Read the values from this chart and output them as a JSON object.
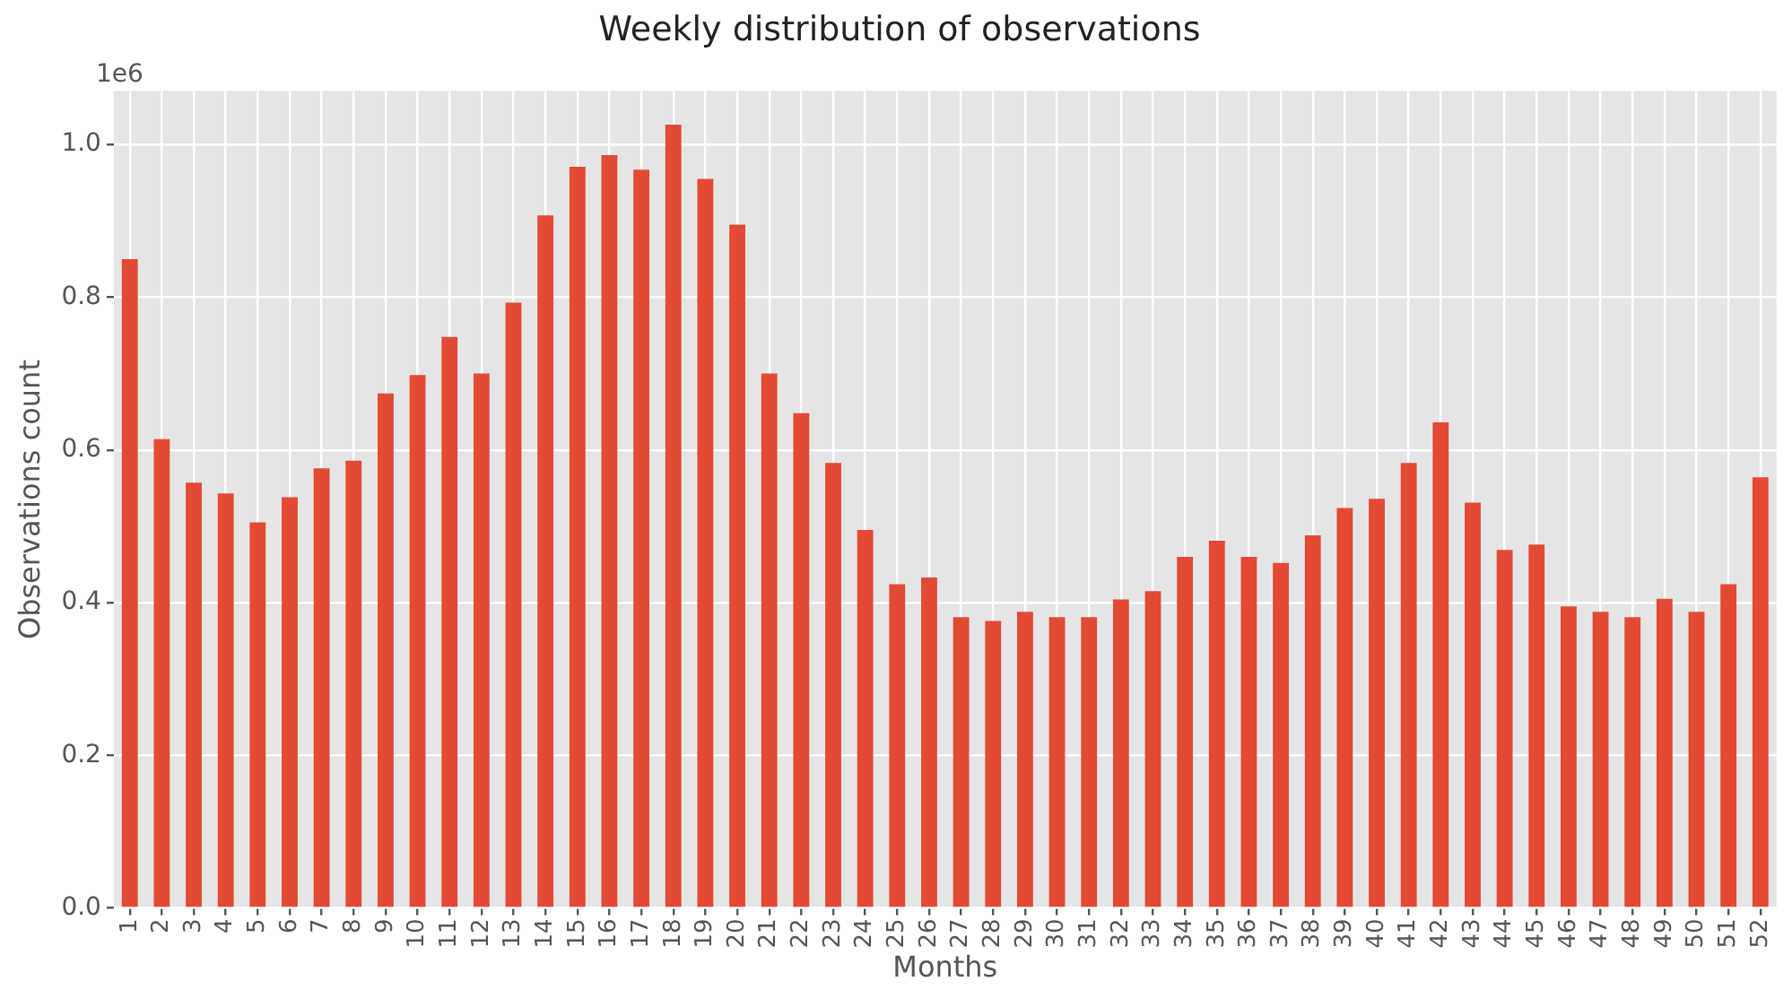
{
  "chart_data": {
    "type": "bar",
    "title": "Weekly distribution of observations",
    "xlabel": "Months",
    "ylabel": "Observations count",
    "categories": [
      "1",
      "2",
      "3",
      "4",
      "5",
      "6",
      "7",
      "8",
      "9",
      "10",
      "11",
      "12",
      "13",
      "14",
      "15",
      "16",
      "17",
      "18",
      "19",
      "20",
      "21",
      "22",
      "23",
      "24",
      "25",
      "26",
      "27",
      "28",
      "29",
      "30",
      "31",
      "32",
      "33",
      "34",
      "35",
      "36",
      "37",
      "38",
      "39",
      "40",
      "41",
      "42",
      "43",
      "44",
      "45",
      "46",
      "47",
      "48",
      "49",
      "50",
      "51",
      "52"
    ],
    "values": [
      0.85,
      0.614,
      0.557,
      0.543,
      0.505,
      0.538,
      0.576,
      0.586,
      0.674,
      0.698,
      0.748,
      0.7,
      0.793,
      0.907,
      0.971,
      0.986,
      0.967,
      1.026,
      0.955,
      0.895,
      0.7,
      0.648,
      0.583,
      0.495,
      0.424,
      0.433,
      0.381,
      0.376,
      0.388,
      0.381,
      0.381,
      0.404,
      0.415,
      0.46,
      0.481,
      0.46,
      0.452,
      0.488,
      0.524,
      0.536,
      0.583,
      0.636,
      0.531,
      0.469,
      0.476,
      0.395,
      0.388,
      0.381,
      0.405,
      0.388,
      0.424,
      0.564
    ],
    "color": "#e24a33",
    "ylim": [
      0,
      1.07
    ],
    "yticks": [
      {
        "value": 0,
        "label": "0.0"
      },
      {
        "value": 0.2,
        "label": "0.2"
      },
      {
        "value": 0.4,
        "label": "0.4"
      },
      {
        "value": 0.6,
        "label": "0.6"
      },
      {
        "value": 0.8,
        "label": "0.8"
      },
      {
        "value": 1,
        "label": "1.0"
      }
    ],
    "annotations": [
      "1e6"
    ],
    "grid": true,
    "legend": false
  }
}
